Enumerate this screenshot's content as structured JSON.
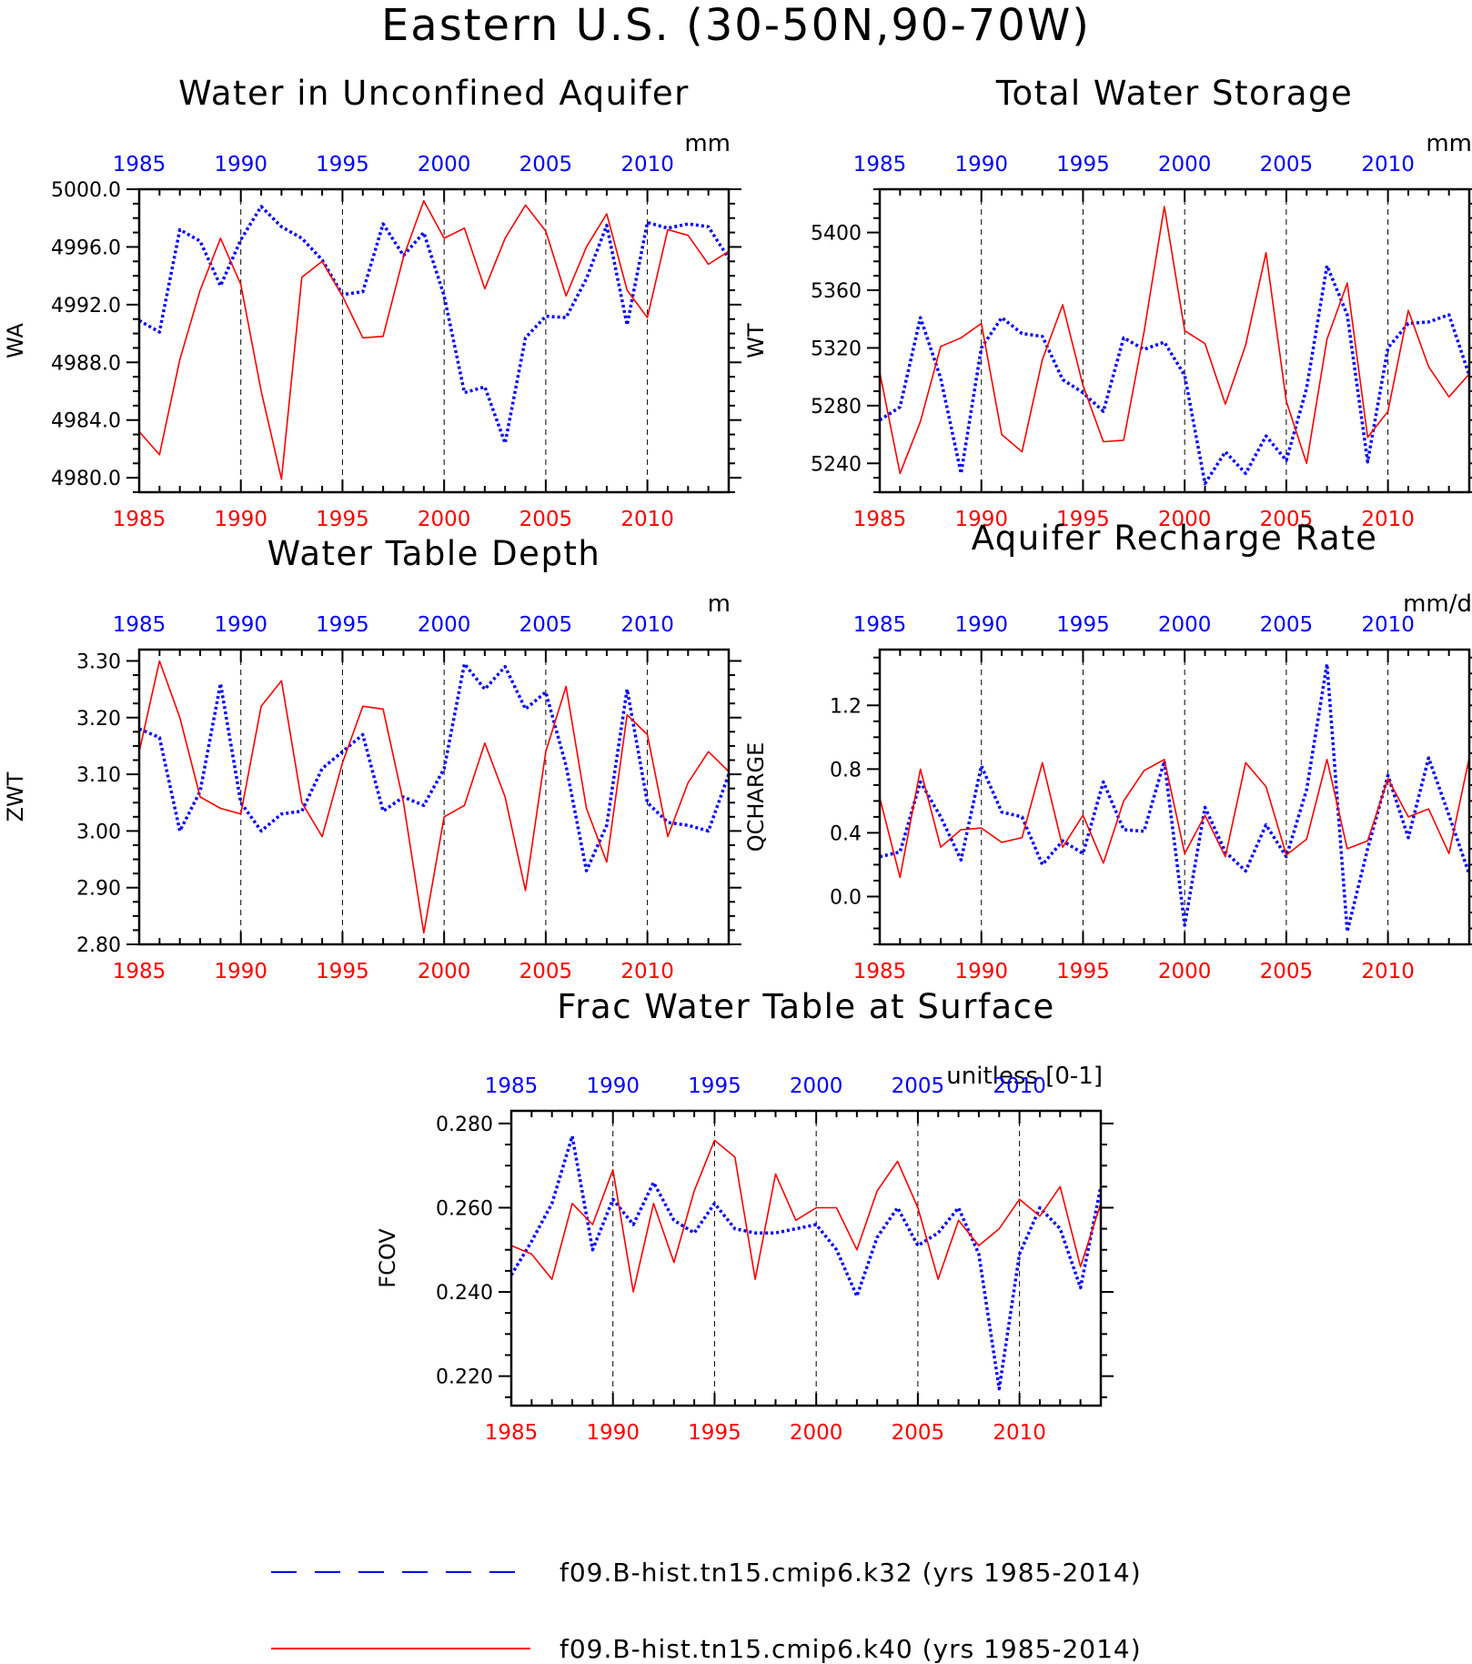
{
  "title": "Eastern U.S. (30-50N,90-70W)",
  "colors": {
    "k32": "#0000ff",
    "k40": "#ff0000",
    "axis": "#000000"
  },
  "legend": [
    {
      "label": "f09.B-hist.tn15.cmip6.k32 (yrs 1985-2014)",
      "color": "#0000ff",
      "style": "dashed"
    },
    {
      "label": "f09.B-hist.tn15.cmip6.k40 (yrs 1985-2014)",
      "color": "#ff0000",
      "style": "solid"
    }
  ],
  "chart_data": [
    {
      "type": "line",
      "title": "Water in Unconfined Aquifer",
      "ylabel": "WA",
      "units": "mm",
      "xlim": [
        1985,
        2014
      ],
      "ylim": [
        4979,
        5000
      ],
      "yticks": [
        4980,
        4984,
        4988,
        4992,
        4996,
        5000
      ],
      "ytick_labels": [
        "4980.0",
        "4984.0",
        "4988.0",
        "4992.0",
        "4996.0",
        "5000.0"
      ],
      "xticks": [
        1985,
        1990,
        1995,
        2000,
        2005,
        2010
      ],
      "xtick_labels": [
        "1985",
        "1990",
        "1995",
        "2000",
        "2005",
        "2010"
      ],
      "series": [
        {
          "key": "k32",
          "values": [
            4990.9,
            4990.1,
            4997.2,
            4996.4,
            4993.3,
            4996.5,
            4998.8,
            4997.4,
            4996.6,
            4995.1,
            4992.7,
            4992.9,
            4997.6,
            4995.4,
            4997.0,
            4992.6,
            4985.9,
            4986.3,
            4982.4,
            4989.7,
            4991.2,
            4991.1,
            4993.8,
            4997.5,
            4990.6,
            4997.7,
            4997.3,
            4997.6,
            4997.4,
            4995.2
          ]
        },
        {
          "key": "k40",
          "values": [
            4983.2,
            4981.6,
            4988.2,
            4993.0,
            4996.6,
            4993.4,
            4986.0,
            4979.9,
            4993.9,
            4995.0,
            4992.6,
            4989.7,
            4989.8,
            4995.3,
            4999.2,
            4996.6,
            4997.3,
            4993.1,
            4996.6,
            4998.9,
            4997.1,
            4992.6,
            4996.0,
            4998.3,
            4993.0,
            4991.1,
            4997.2,
            4996.8,
            4994.8,
            4995.7
          ]
        }
      ]
    },
    {
      "type": "line",
      "title": "Total Water Storage",
      "ylabel": "WT",
      "units": "mm",
      "xlim": [
        1985,
        2014
      ],
      "ylim": [
        5220,
        5430
      ],
      "yticks": [
        5240,
        5280,
        5320,
        5360,
        5400
      ],
      "ytick_labels": [
        "5240",
        "5280",
        "5320",
        "5360",
        "5400"
      ],
      "xticks": [
        1985,
        1990,
        1995,
        2000,
        2005,
        2010
      ],
      "xtick_labels": [
        "1985",
        "1990",
        "1995",
        "2000",
        "2005",
        "2010"
      ],
      "series": [
        {
          "key": "k32",
          "values": [
            5270,
            5279,
            5341,
            5299,
            5233,
            5320,
            5341,
            5330,
            5328,
            5298,
            5289,
            5276,
            5327,
            5319,
            5324,
            5301,
            5226,
            5248,
            5233,
            5259,
            5242,
            5292,
            5377,
            5343,
            5241,
            5320,
            5337,
            5338,
            5343,
            5301
          ]
        },
        {
          "key": "k40",
          "values": [
            5303,
            5233,
            5269,
            5321,
            5327,
            5337,
            5260,
            5248,
            5312,
            5350,
            5294,
            5255,
            5256,
            5331,
            5418,
            5332,
            5323,
            5281,
            5322,
            5386,
            5283,
            5240,
            5326,
            5365,
            5258,
            5276,
            5346,
            5307,
            5286,
            5302
          ]
        }
      ]
    },
    {
      "type": "line",
      "title": "Water Table Depth",
      "ylabel": "ZWT",
      "units": "m",
      "xlim": [
        1985,
        2014
      ],
      "ylim": [
        2.8,
        3.32
      ],
      "yticks": [
        2.8,
        2.9,
        3.0,
        3.1,
        3.2,
        3.3
      ],
      "ytick_labels": [
        "2.80",
        "2.90",
        "3.00",
        "3.10",
        "3.20",
        "3.30"
      ],
      "xticks": [
        1985,
        1990,
        1995,
        2000,
        2005,
        2010
      ],
      "xtick_labels": [
        "1985",
        "1990",
        "1995",
        "2000",
        "2005",
        "2010"
      ],
      "series": [
        {
          "key": "k32",
          "values": [
            3.18,
            3.165,
            3.0,
            3.07,
            3.26,
            3.05,
            3.0,
            3.03,
            3.035,
            3.11,
            3.14,
            3.17,
            3.035,
            3.06,
            3.045,
            3.11,
            3.295,
            3.25,
            3.29,
            3.215,
            3.245,
            3.115,
            2.93,
            3.01,
            3.25,
            3.05,
            3.015,
            3.01,
            3.0,
            3.1
          ]
        },
        {
          "key": "k40",
          "values": [
            3.14,
            3.3,
            3.2,
            3.06,
            3.04,
            3.03,
            3.22,
            3.265,
            3.05,
            2.99,
            3.12,
            3.22,
            3.215,
            3.05,
            2.82,
            3.025,
            3.045,
            3.155,
            3.06,
            2.895,
            3.14,
            3.255,
            3.04,
            2.945,
            3.205,
            3.17,
            2.99,
            3.085,
            3.14,
            3.105
          ]
        }
      ]
    },
    {
      "type": "line",
      "title": "Aquifer Recharge Rate",
      "ylabel": "QCHARGE",
      "units": "mm/d",
      "xlim": [
        1985,
        2014
      ],
      "ylim": [
        -0.3,
        1.55
      ],
      "yticks": [
        0.0,
        0.4,
        0.8,
        1.2
      ],
      "ytick_labels": [
        "0.0",
        "0.4",
        "0.8",
        "1.2"
      ],
      "xticks": [
        1985,
        1990,
        1995,
        2000,
        2005,
        2010
      ],
      "xtick_labels": [
        "1985",
        "1990",
        "1995",
        "2000",
        "2005",
        "2010"
      ],
      "series": [
        {
          "key": "k32",
          "values": [
            0.25,
            0.28,
            0.72,
            0.5,
            0.23,
            0.82,
            0.53,
            0.5,
            0.2,
            0.35,
            0.27,
            0.72,
            0.42,
            0.41,
            0.85,
            -0.18,
            0.56,
            0.28,
            0.16,
            0.45,
            0.25,
            0.67,
            1.46,
            -0.22,
            0.3,
            0.76,
            0.37,
            0.87,
            0.51,
            0.14
          ]
        },
        {
          "key": "k40",
          "values": [
            0.62,
            0.12,
            0.8,
            0.31,
            0.42,
            0.43,
            0.34,
            0.37,
            0.84,
            0.31,
            0.51,
            0.21,
            0.6,
            0.79,
            0.86,
            0.27,
            0.51,
            0.25,
            0.84,
            0.69,
            0.26,
            0.36,
            0.86,
            0.3,
            0.35,
            0.74,
            0.5,
            0.55,
            0.27,
            0.87
          ]
        }
      ]
    },
    {
      "type": "line",
      "title": "Frac Water Table at Surface",
      "ylabel": "FCOV",
      "units": "unitless [0-1]",
      "xlim": [
        1985,
        2014
      ],
      "ylim": [
        0.213,
        0.283
      ],
      "yticks": [
        0.22,
        0.24,
        0.26,
        0.28
      ],
      "ytick_labels": [
        "0.220",
        "0.240",
        "0.260",
        "0.280"
      ],
      "xticks": [
        1985,
        1990,
        1995,
        2000,
        2005,
        2010
      ],
      "xtick_labels": [
        "1985",
        "1990",
        "1995",
        "2000",
        "2005",
        "2010"
      ],
      "series": [
        {
          "key": "k32",
          "values": [
            0.244,
            0.252,
            0.261,
            0.277,
            0.25,
            0.262,
            0.256,
            0.266,
            0.257,
            0.254,
            0.261,
            0.255,
            0.254,
            0.254,
            0.255,
            0.256,
            0.25,
            0.239,
            0.253,
            0.26,
            0.251,
            0.254,
            0.26,
            0.249,
            0.217,
            0.249,
            0.26,
            0.255,
            0.241,
            0.265
          ]
        },
        {
          "key": "k40",
          "values": [
            0.251,
            0.249,
            0.243,
            0.261,
            0.256,
            0.269,
            0.24,
            0.261,
            0.247,
            0.264,
            0.276,
            0.272,
            0.243,
            0.268,
            0.257,
            0.26,
            0.26,
            0.25,
            0.264,
            0.271,
            0.26,
            0.243,
            0.257,
            0.251,
            0.255,
            0.262,
            0.258,
            0.265,
            0.246,
            0.261
          ]
        }
      ]
    }
  ]
}
